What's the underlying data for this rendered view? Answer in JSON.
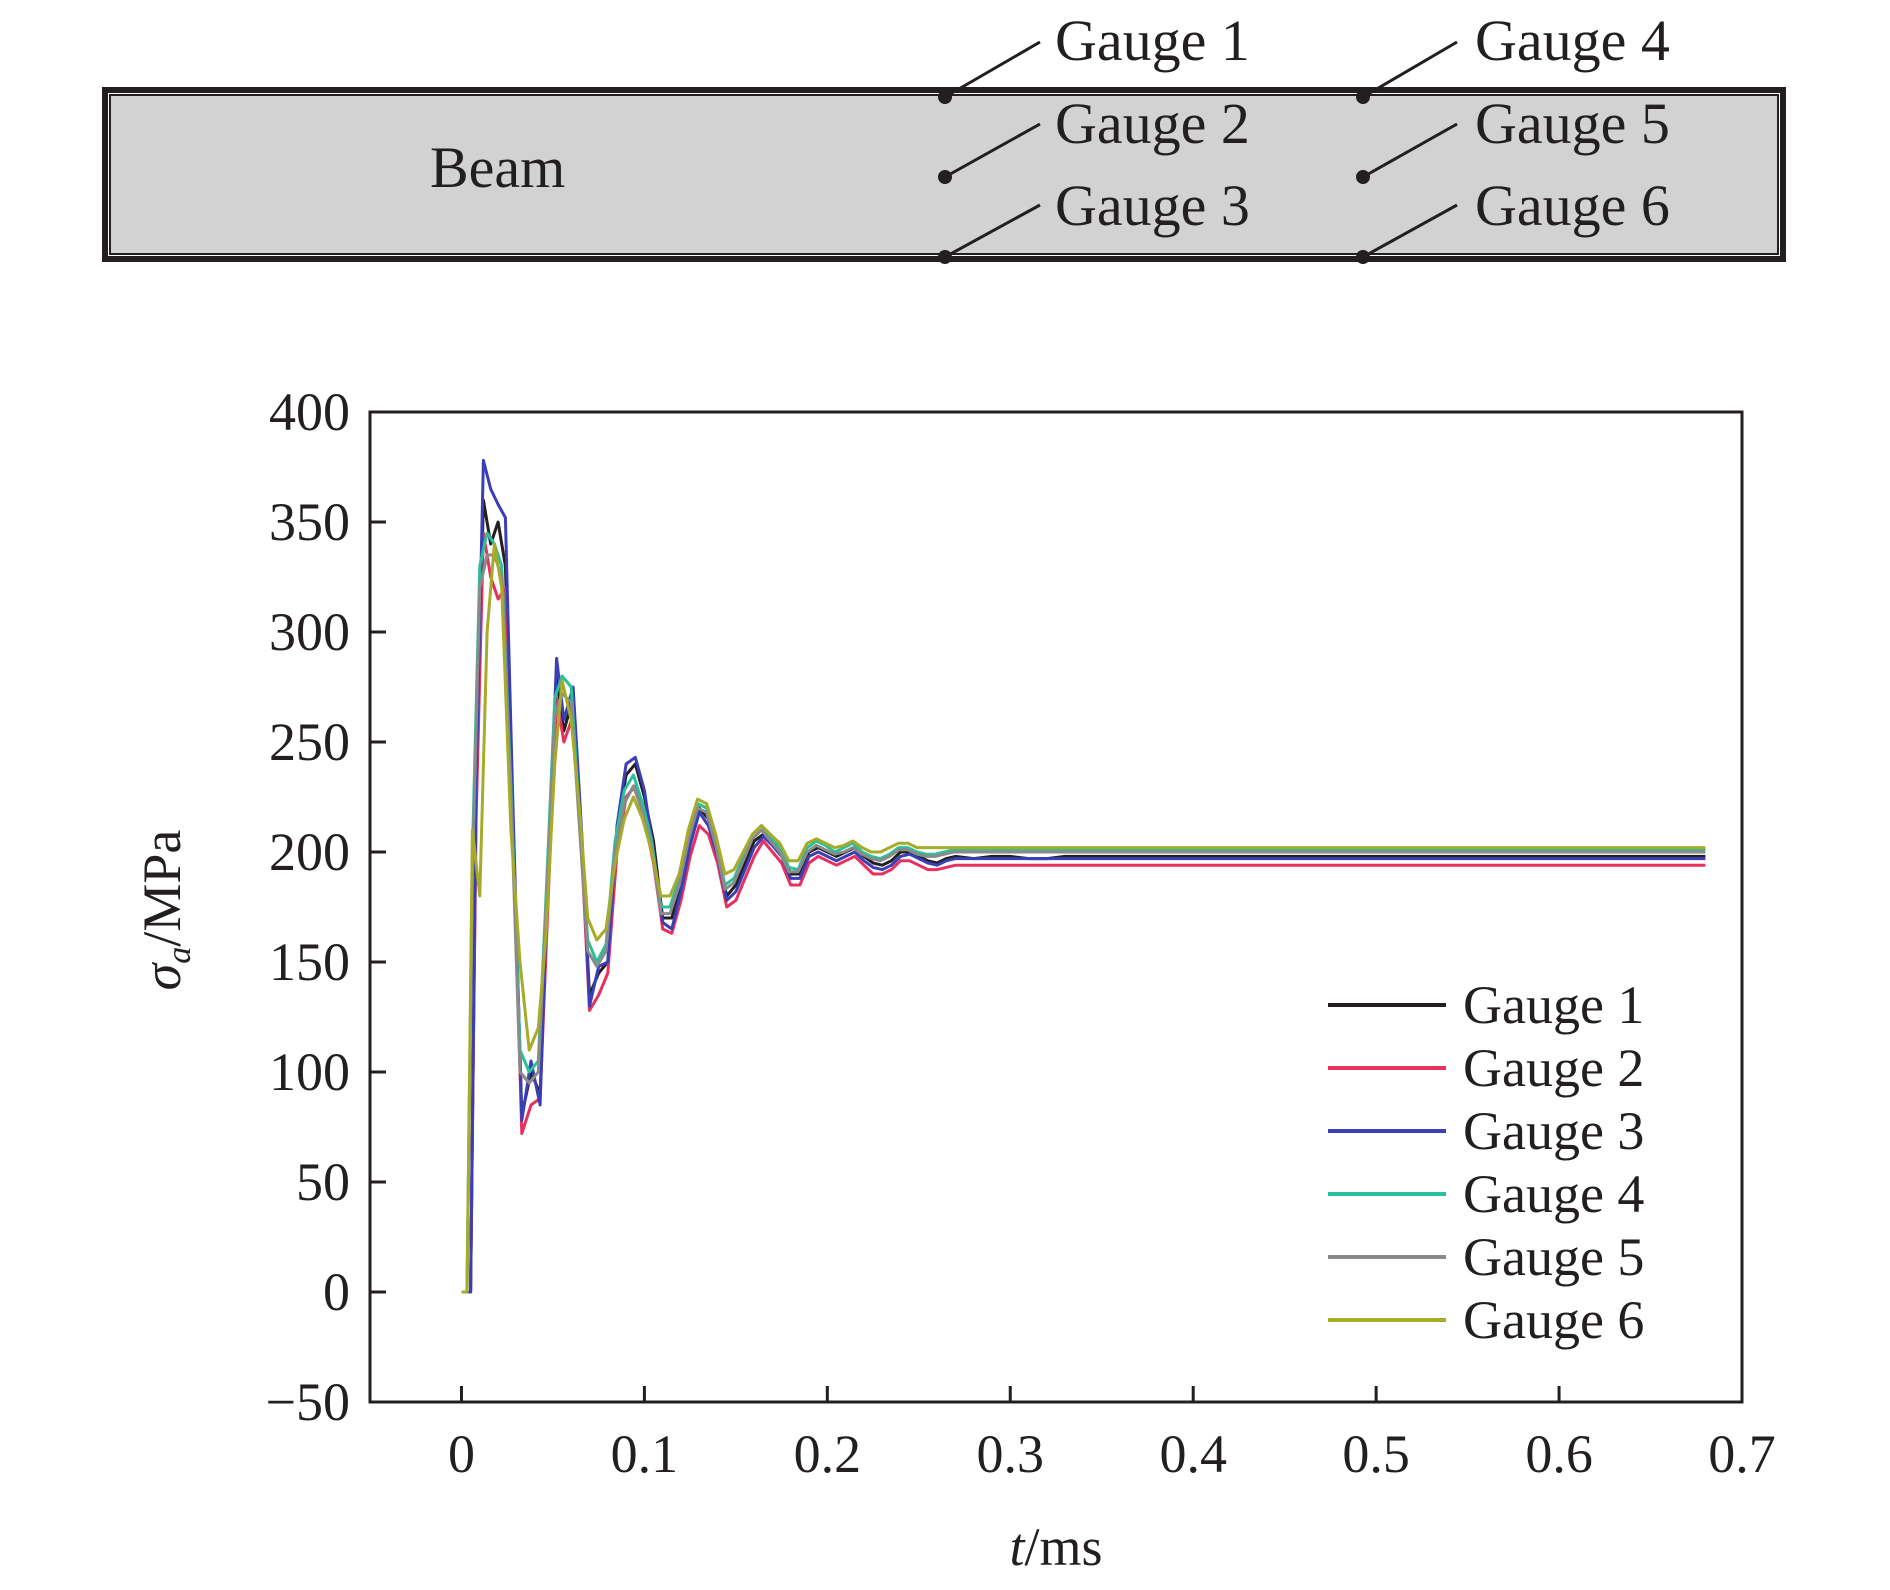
{
  "beam_diagram": {
    "beam_label": "Beam",
    "gauge_labels": [
      "Gauge 1",
      "Gauge 2",
      "Gauge 3",
      "Gauge 4",
      "Gauge 5",
      "Gauge 6"
    ]
  },
  "chart_data": {
    "type": "line",
    "title": "",
    "xlabel_italic": "t",
    "xlabel_unit": "/ms",
    "ylabel_symbol": "σ",
    "ylabel_subscript": "a",
    "ylabel_unit": "/MPa",
    "xlim": [
      -0.05,
      0.7
    ],
    "ylim": [
      -50,
      400
    ],
    "xticks": [
      0,
      0.1,
      0.2,
      0.3,
      0.4,
      0.5,
      0.6,
      0.7
    ],
    "xtick_labels": [
      "0",
      "0.1",
      "0.2",
      "0.3",
      "0.4",
      "0.5",
      "0.6",
      "0.7"
    ],
    "yticks": [
      -50,
      0,
      50,
      100,
      150,
      200,
      250,
      300,
      350,
      400
    ],
    "ytick_labels": [
      "−50",
      "0",
      "50",
      "100",
      "150",
      "200",
      "250",
      "300",
      "350",
      "400"
    ],
    "grid": false,
    "legend_position": "lower-right",
    "series": [
      {
        "name": "Gauge 1",
        "color": "#231f20",
        "x": [
          0,
          0.005,
          0.008,
          0.012,
          0.016,
          0.02,
          0.024,
          0.028,
          0.033,
          0.038,
          0.043,
          0.047,
          0.052,
          0.056,
          0.061,
          0.066,
          0.07,
          0.075,
          0.08,
          0.085,
          0.09,
          0.095,
          0.1,
          0.105,
          0.11,
          0.115,
          0.12,
          0.125,
          0.13,
          0.135,
          0.14,
          0.145,
          0.15,
          0.155,
          0.16,
          0.165,
          0.17,
          0.175,
          0.18,
          0.185,
          0.19,
          0.195,
          0.2,
          0.205,
          0.21,
          0.215,
          0.22,
          0.225,
          0.23,
          0.235,
          0.24,
          0.245,
          0.25,
          0.255,
          0.26,
          0.265,
          0.27,
          0.28,
          0.29,
          0.3,
          0.31,
          0.32,
          0.33,
          0.35,
          0.4,
          0.5,
          0.6,
          0.68
        ],
        "y": [
          0,
          0,
          225,
          360,
          340,
          350,
          330,
          220,
          80,
          100,
          90,
          180,
          280,
          255,
          270,
          200,
          135,
          145,
          150,
          210,
          235,
          240,
          225,
          205,
          170,
          170,
          185,
          205,
          220,
          215,
          200,
          180,
          185,
          195,
          205,
          208,
          205,
          200,
          190,
          190,
          200,
          202,
          200,
          198,
          200,
          202,
          198,
          195,
          194,
          196,
          200,
          200,
          198,
          196,
          195,
          197,
          198,
          197,
          198,
          198,
          197,
          197,
          198,
          198,
          198,
          198,
          198,
          198
        ]
      },
      {
        "name": "Gauge 2",
        "color": "#e8305e",
        "x": [
          0,
          0.005,
          0.008,
          0.012,
          0.016,
          0.02,
          0.024,
          0.028,
          0.033,
          0.038,
          0.043,
          0.047,
          0.052,
          0.056,
          0.061,
          0.066,
          0.07,
          0.075,
          0.08,
          0.085,
          0.09,
          0.095,
          0.1,
          0.105,
          0.11,
          0.115,
          0.12,
          0.125,
          0.13,
          0.135,
          0.14,
          0.145,
          0.15,
          0.155,
          0.16,
          0.165,
          0.17,
          0.175,
          0.18,
          0.185,
          0.19,
          0.195,
          0.2,
          0.205,
          0.21,
          0.215,
          0.22,
          0.225,
          0.23,
          0.235,
          0.24,
          0.245,
          0.25,
          0.255,
          0.26,
          0.265,
          0.27,
          0.28,
          0.29,
          0.3,
          0.31,
          0.32,
          0.33,
          0.35,
          0.4,
          0.5,
          0.6,
          0.68
        ],
        "y": [
          0,
          0,
          215,
          345,
          325,
          315,
          320,
          215,
          72,
          85,
          88,
          170,
          270,
          250,
          262,
          195,
          128,
          135,
          145,
          200,
          225,
          230,
          215,
          195,
          165,
          163,
          178,
          198,
          212,
          208,
          195,
          175,
          178,
          188,
          198,
          205,
          200,
          195,
          185,
          185,
          195,
          198,
          196,
          194,
          196,
          198,
          194,
          190,
          190,
          192,
          196,
          196,
          194,
          192,
          192,
          193,
          194,
          194,
          194,
          194,
          194,
          194,
          194,
          194,
          194,
          194,
          194,
          194
        ]
      },
      {
        "name": "Gauge 3",
        "color": "#3b3fb5",
        "x": [
          0,
          0.005,
          0.008,
          0.012,
          0.016,
          0.02,
          0.024,
          0.028,
          0.033,
          0.038,
          0.043,
          0.047,
          0.052,
          0.056,
          0.061,
          0.066,
          0.07,
          0.075,
          0.08,
          0.085,
          0.09,
          0.095,
          0.1,
          0.105,
          0.11,
          0.115,
          0.12,
          0.125,
          0.13,
          0.135,
          0.14,
          0.145,
          0.15,
          0.155,
          0.16,
          0.165,
          0.17,
          0.175,
          0.18,
          0.185,
          0.19,
          0.195,
          0.2,
          0.205,
          0.21,
          0.215,
          0.22,
          0.225,
          0.23,
          0.235,
          0.24,
          0.245,
          0.25,
          0.255,
          0.26,
          0.265,
          0.27,
          0.28,
          0.29,
          0.3,
          0.31,
          0.32,
          0.33,
          0.35,
          0.4,
          0.5,
          0.6,
          0.68
        ],
        "y": [
          0,
          0,
          230,
          378,
          365,
          358,
          352,
          225,
          78,
          105,
          85,
          185,
          288,
          260,
          275,
          205,
          130,
          148,
          150,
          212,
          240,
          243,
          228,
          200,
          168,
          165,
          182,
          203,
          218,
          212,
          198,
          178,
          182,
          192,
          202,
          207,
          203,
          198,
          188,
          188,
          198,
          200,
          198,
          196,
          198,
          200,
          196,
          193,
          192,
          194,
          198,
          199,
          197,
          195,
          194,
          196,
          197,
          197,
          197,
          197,
          197,
          197,
          197,
          197,
          197,
          197,
          197,
          197
        ]
      },
      {
        "name": "Gauge 4",
        "color": "#2bbf9a",
        "x": [
          0,
          0.003,
          0.006,
          0.01,
          0.014,
          0.018,
          0.022,
          0.027,
          0.032,
          0.037,
          0.042,
          0.046,
          0.051,
          0.055,
          0.06,
          0.065,
          0.069,
          0.074,
          0.079,
          0.084,
          0.089,
          0.094,
          0.099,
          0.104,
          0.109,
          0.114,
          0.119,
          0.124,
          0.129,
          0.134,
          0.139,
          0.144,
          0.149,
          0.154,
          0.159,
          0.164,
          0.169,
          0.174,
          0.179,
          0.184,
          0.189,
          0.194,
          0.199,
          0.204,
          0.209,
          0.214,
          0.219,
          0.224,
          0.229,
          0.234,
          0.239,
          0.244,
          0.249,
          0.254,
          0.259,
          0.264,
          0.269,
          0.279,
          0.289,
          0.299,
          0.309,
          0.319,
          0.329,
          0.349,
          0.4,
          0.5,
          0.6,
          0.68
        ],
        "y": [
          0,
          0,
          200,
          330,
          345,
          340,
          330,
          230,
          110,
          100,
          105,
          175,
          270,
          280,
          275,
          210,
          160,
          150,
          158,
          205,
          228,
          235,
          222,
          205,
          175,
          175,
          188,
          208,
          222,
          220,
          205,
          185,
          188,
          198,
          208,
          212,
          207,
          202,
          193,
          192,
          202,
          205,
          203,
          200,
          202,
          204,
          200,
          198,
          197,
          199,
          202,
          202,
          200,
          199,
          199,
          200,
          201,
          201,
          201,
          201,
          201,
          201,
          201,
          201,
          201,
          201,
          201,
          201
        ]
      },
      {
        "name": "Gauge 5",
        "color": "#8a8a8a",
        "x": [
          0,
          0.003,
          0.006,
          0.01,
          0.014,
          0.018,
          0.022,
          0.027,
          0.032,
          0.037,
          0.042,
          0.046,
          0.051,
          0.055,
          0.06,
          0.065,
          0.069,
          0.074,
          0.079,
          0.084,
          0.089,
          0.094,
          0.099,
          0.104,
          0.109,
          0.114,
          0.119,
          0.124,
          0.129,
          0.134,
          0.139,
          0.144,
          0.149,
          0.154,
          0.159,
          0.164,
          0.169,
          0.174,
          0.179,
          0.184,
          0.189,
          0.194,
          0.199,
          0.204,
          0.209,
          0.214,
          0.219,
          0.224,
          0.229,
          0.234,
          0.239,
          0.244,
          0.249,
          0.254,
          0.259,
          0.264,
          0.269,
          0.279,
          0.289,
          0.299,
          0.309,
          0.319,
          0.329,
          0.349,
          0.4,
          0.5,
          0.6,
          0.68
        ],
        "y": [
          0,
          0,
          190,
          320,
          335,
          335,
          325,
          225,
          100,
          95,
          100,
          170,
          262,
          272,
          268,
          205,
          155,
          148,
          155,
          200,
          222,
          230,
          218,
          202,
          172,
          172,
          185,
          205,
          220,
          218,
          203,
          183,
          186,
          196,
          206,
          210,
          205,
          200,
          191,
          191,
          200,
          203,
          201,
          199,
          200,
          202,
          199,
          197,
          196,
          198,
          201,
          201,
          199,
          198,
          198,
          199,
          200,
          200,
          200,
          200,
          200,
          200,
          200,
          200,
          200,
          200,
          200,
          200
        ]
      },
      {
        "name": "Gauge 6",
        "color": "#a6ab2a",
        "x": [
          0,
          0.003,
          0.006,
          0.01,
          0.014,
          0.018,
          0.022,
          0.027,
          0.032,
          0.037,
          0.042,
          0.046,
          0.051,
          0.055,
          0.06,
          0.065,
          0.069,
          0.074,
          0.079,
          0.084,
          0.089,
          0.094,
          0.099,
          0.104,
          0.109,
          0.114,
          0.119,
          0.124,
          0.129,
          0.134,
          0.139,
          0.144,
          0.149,
          0.154,
          0.159,
          0.164,
          0.169,
          0.174,
          0.179,
          0.184,
          0.189,
          0.194,
          0.199,
          0.204,
          0.209,
          0.214,
          0.219,
          0.224,
          0.229,
          0.234,
          0.239,
          0.244,
          0.249,
          0.254,
          0.259,
          0.264,
          0.269,
          0.279,
          0.289,
          0.299,
          0.309,
          0.319,
          0.329,
          0.349,
          0.4,
          0.5,
          0.6,
          0.68
        ],
        "y": [
          0,
          0,
          210,
          180,
          300,
          340,
          320,
          210,
          150,
          110,
          120,
          160,
          240,
          278,
          260,
          215,
          170,
          160,
          165,
          195,
          215,
          225,
          215,
          200,
          180,
          180,
          190,
          210,
          224,
          222,
          208,
          190,
          192,
          200,
          208,
          212,
          208,
          204,
          196,
          196,
          204,
          206,
          204,
          202,
          203,
          205,
          202,
          200,
          200,
          202,
          204,
          204,
          202,
          202,
          202,
          202,
          202,
          202,
          202,
          202,
          202,
          202,
          202,
          202,
          202,
          202,
          202,
          202
        ]
      }
    ]
  }
}
